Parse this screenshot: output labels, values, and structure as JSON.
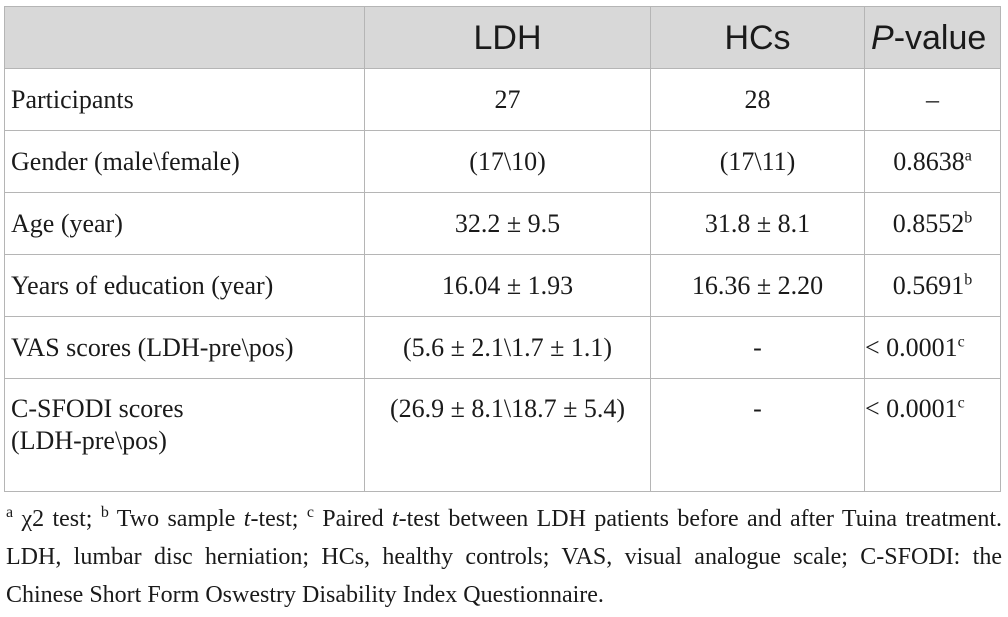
{
  "table": {
    "headers": {
      "col1": "",
      "col2": "LDH",
      "col3": "HCs",
      "col4_italic": "P",
      "col4_rest": "-value"
    },
    "rows": [
      {
        "label": "Participants",
        "ldh": "27",
        "hcs": "28",
        "p": "–",
        "p_sup": ""
      },
      {
        "label": "Gender (male\\female)",
        "ldh": "(17\\10)",
        "hcs": "(17\\11)",
        "p": "0.8638",
        "p_sup": "a"
      },
      {
        "label": "Age (year)",
        "ldh": "32.2 ± 9.5",
        "hcs": "31.8 ± 8.1",
        "p": "0.8552",
        "p_sup": "b"
      },
      {
        "label": "Years of education (year)",
        "ldh": "16.04 ± 1.93",
        "hcs": "16.36 ± 2.20",
        "p": "0.5691",
        "p_sup": "b"
      },
      {
        "label": "VAS scores (LDH-pre\\pos)",
        "ldh": "(5.6 ± 2.1\\1.7 ± 1.1)",
        "hcs": "-",
        "p": "< 0.0001",
        "p_sup": "c"
      },
      {
        "label_line1": "C-SFODI scores",
        "label_line2": "(LDH-pre\\pos)",
        "ldh": "(26.9 ± 8.1\\18.7 ± 5.4)",
        "hcs": "-",
        "p": "< 0.0001",
        "p_sup": "c"
      }
    ]
  },
  "footnote": {
    "sup_a": "a",
    "text_a": " χ2 test; ",
    "sup_b": "b",
    "text_b": " Two sample ",
    "t1": "t",
    "text_c": "-test; ",
    "sup_c": "c",
    "text_d": " Paired ",
    "t2": "t",
    "text_e": "-test between LDH patients before and after Tuina treatment. LDH, lumbar disc herniation; HCs, healthy controls; VAS, visual analogue scale; C-SFODI: the Chinese Short Form Oswestry Disability Index Questionnaire."
  }
}
